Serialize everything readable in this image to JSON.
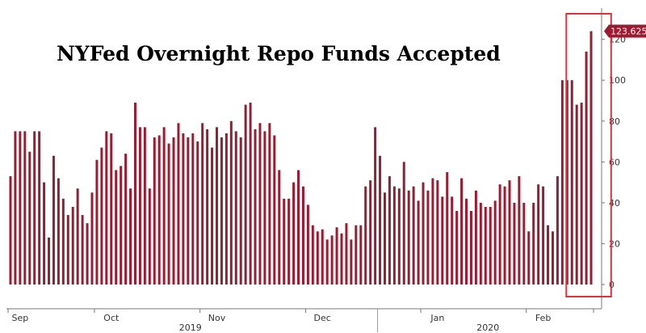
{
  "chart_data": {
    "type": "bar",
    "title": "NYFed Overnight Repo Funds Accepted",
    "ylim": [
      0,
      125
    ],
    "y_ticks": [
      0,
      20,
      40,
      60,
      80,
      100,
      120
    ],
    "y_axis_side": "right",
    "grid": false,
    "bar_color": "#9b1b30",
    "highlight_color": "#e0303c",
    "last_value_label": "123.625",
    "month_labels": [
      {
        "label": "Sep",
        "index": 2
      },
      {
        "label": "Oct",
        "index": 21
      },
      {
        "label": "Nov",
        "index": 43
      },
      {
        "label": "Dec",
        "index": 65
      },
      {
        "label": "Jan",
        "index": 89
      },
      {
        "label": "Feb",
        "index": 111
      }
    ],
    "year_labels": [
      {
        "label": "2019",
        "index": 38
      },
      {
        "label": "2020",
        "index": 100
      }
    ],
    "year_divider_index": 77,
    "highlight_range": [
      117,
      125
    ],
    "values": [
      53,
      75,
      75,
      75,
      65,
      75,
      75,
      50,
      23,
      63,
      52,
      42,
      34,
      38,
      47,
      34,
      30,
      45,
      61,
      67,
      75,
      74,
      56,
      58,
      64,
      47,
      89,
      77,
      77,
      47,
      72,
      73,
      77,
      69,
      72,
      79,
      74,
      72,
      74,
      70,
      79,
      76,
      67,
      77,
      72,
      74,
      80,
      75,
      72,
      88,
      89,
      76,
      79,
      75,
      79,
      73,
      56,
      42,
      42,
      50,
      56,
      48,
      39,
      29,
      26,
      27,
      22,
      24,
      28,
      25,
      30,
      22,
      29,
      29,
      48,
      51,
      77,
      63,
      45,
      53,
      48,
      47,
      60,
      46,
      48,
      41,
      50,
      46,
      52,
      51,
      43,
      55,
      43,
      36,
      52,
      42,
      36,
      46,
      40,
      38,
      38,
      41,
      49,
      48,
      51,
      40,
      53,
      40,
      26,
      40,
      49,
      48,
      29,
      26,
      53,
      100,
      100,
      100,
      88,
      89,
      114,
      124
    ]
  }
}
